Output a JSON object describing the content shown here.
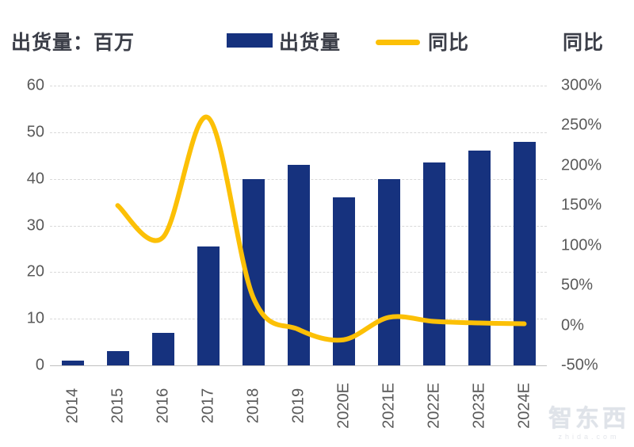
{
  "header": {
    "left_axis_title": "出货量：百万",
    "right_axis_title": "同比",
    "legend": [
      {
        "label": "出货量",
        "marker": "bar-swatch"
      },
      {
        "label": "同比",
        "marker": "line-swatch"
      }
    ]
  },
  "chart_data": {
    "type": "bar",
    "subtype": "bar+line combo",
    "categories": [
      "2014",
      "2015",
      "2016",
      "2017",
      "2018",
      "2019",
      "2020E",
      "2021E",
      "2022E",
      "2023E",
      "2024E"
    ],
    "series": [
      {
        "name": "出货量",
        "type": "bar",
        "axis": "left",
        "values": [
          1,
          3,
          7,
          25.5,
          40,
          43,
          36,
          40,
          43.5,
          46,
          48
        ]
      },
      {
        "name": "同比",
        "type": "line",
        "axis": "right",
        "unit": "%",
        "values": [
          null,
          150,
          110,
          260,
          35,
          -5,
          -18,
          10,
          5,
          3,
          2
        ]
      }
    ],
    "left_axis": {
      "title": "出货量：百万",
      "ticks": [
        60,
        50,
        40,
        30,
        20,
        10,
        0
      ],
      "range": [
        0,
        60
      ]
    },
    "right_axis": {
      "title": "同比",
      "ticks": [
        "300%",
        "250%",
        "200%",
        "150%",
        "100%",
        "50%",
        "0%",
        "-50%"
      ],
      "range": [
        -50,
        300
      ]
    },
    "grid": "horizontal dashed",
    "legend_position": "top center",
    "colors": {
      "bar": "#16327E",
      "line": "#FCC006",
      "grid": "#d9d9d9",
      "axis_line": "#bfbfbf",
      "tick_text": "#595959",
      "title_text": "#3b3e48"
    }
  },
  "watermark": {
    "title": "智东西",
    "subtitle": "zhida.com"
  }
}
